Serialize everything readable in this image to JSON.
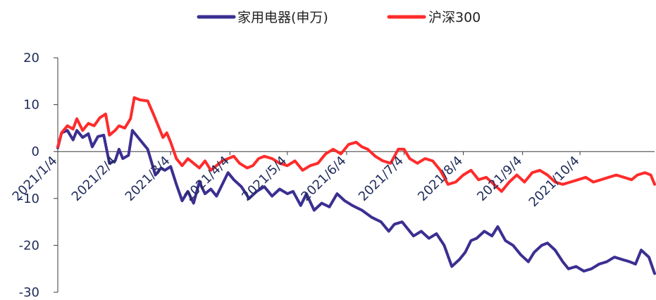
{
  "chart_data": {
    "type": "line",
    "title": "",
    "xlabel": "",
    "ylabel": "",
    "ylim": [
      -30,
      20
    ],
    "yticks": [
      -30,
      -20,
      -10,
      0,
      10,
      20
    ],
    "ytick_labels": [
      "-30",
      "-20",
      "-10",
      "0",
      "10",
      "20"
    ],
    "xticks": [
      "2021/1/4",
      "2021/2/4",
      "2021/3/4",
      "2021/4/4",
      "2021/5/4",
      "2021/6/4",
      "2021/7/4",
      "2021/8/4",
      "2021/9/4",
      "2021/10/4"
    ],
    "xlim": [
      "2021/1/4",
      "2021/11/12"
    ],
    "grid": false,
    "legend": "top-center",
    "series": [
      {
        "name": "家用电器(申万)",
        "color": "#3b2f91",
        "points": [
          [
            "2021/1/4",
            0.8
          ],
          [
            "2021/1/6",
            4.0
          ],
          [
            "2021/1/9",
            4.5
          ],
          [
            "2021/1/12",
            2.5
          ],
          [
            "2021/1/14",
            4.5
          ],
          [
            "2021/1/17",
            3.0
          ],
          [
            "2021/1/20",
            3.8
          ],
          [
            "2021/1/22",
            1.0
          ],
          [
            "2021/1/25",
            3.2
          ],
          [
            "2021/1/28",
            3.5
          ],
          [
            "2021/1/31",
            -2.5
          ],
          [
            "2021/2/3",
            -2.0
          ],
          [
            "2021/2/5",
            0.5
          ],
          [
            "2021/2/7",
            -1.5
          ],
          [
            "2021/2/10",
            -0.8
          ],
          [
            "2021/2/12",
            4.5
          ],
          [
            "2021/2/15",
            3.0
          ],
          [
            "2021/2/20",
            0.5
          ],
          [
            "2021/2/24",
            -5.0
          ],
          [
            "2021/2/27",
            -3.5
          ],
          [
            "2021/3/1",
            -4.0
          ],
          [
            "2021/3/4",
            -3.2
          ],
          [
            "2021/3/7",
            -7.0
          ],
          [
            "2021/3/10",
            -10.5
          ],
          [
            "2021/3/13",
            -8.5
          ],
          [
            "2021/3/16",
            -11.0
          ],
          [
            "2021/3/19",
            -6.5
          ],
          [
            "2021/3/22",
            -9.0
          ],
          [
            "2021/3/25",
            -8.0
          ],
          [
            "2021/3/28",
            -9.5
          ],
          [
            "2021/3/31",
            -7.0
          ],
          [
            "2021/4/3",
            -4.5
          ],
          [
            "2021/4/6",
            -6.0
          ],
          [
            "2021/4/10",
            -7.5
          ],
          [
            "2021/4/14",
            -10.0
          ],
          [
            "2021/4/18",
            -8.5
          ],
          [
            "2021/4/22",
            -7.5
          ],
          [
            "2021/4/26",
            -9.5
          ],
          [
            "2021/4/30",
            -8.0
          ],
          [
            "2021/5/4",
            -9.0
          ],
          [
            "2021/5/7",
            -8.5
          ],
          [
            "2021/5/11",
            -11.5
          ],
          [
            "2021/5/14",
            -9.0
          ],
          [
            "2021/5/18",
            -12.5
          ],
          [
            "2021/5/22",
            -11.0
          ],
          [
            "2021/5/26",
            -11.8
          ],
          [
            "2021/5/30",
            -9.0
          ],
          [
            "2021/6/3",
            -10.5
          ],
          [
            "2021/6/7",
            -11.5
          ],
          [
            "2021/6/12",
            -12.5
          ],
          [
            "2021/6/17",
            -14.0
          ],
          [
            "2021/6/22",
            -15.0
          ],
          [
            "2021/6/26",
            -17.0
          ],
          [
            "2021/6/29",
            -15.5
          ],
          [
            "2021/7/3",
            -15.0
          ],
          [
            "2021/7/6",
            -16.5
          ],
          [
            "2021/7/9",
            -18.0
          ],
          [
            "2021/7/13",
            -17.0
          ],
          [
            "2021/7/17",
            -18.5
          ],
          [
            "2021/7/21",
            -17.5
          ],
          [
            "2021/7/25",
            -20.0
          ],
          [
            "2021/7/29",
            -24.5
          ],
          [
            "2021/8/2",
            -23.0
          ],
          [
            "2021/8/5",
            -21.5
          ],
          [
            "2021/8/8",
            -19.0
          ],
          [
            "2021/8/11",
            -18.5
          ],
          [
            "2021/8/15",
            -17.0
          ],
          [
            "2021/8/19",
            -18.0
          ],
          [
            "2021/8/22",
            -16.0
          ],
          [
            "2021/8/26",
            -19.0
          ],
          [
            "2021/8/30",
            -20.0
          ],
          [
            "2021/9/3",
            -22.0
          ],
          [
            "2021/9/7",
            -23.5
          ],
          [
            "2021/9/10",
            -21.5
          ],
          [
            "2021/9/14",
            -20.0
          ],
          [
            "2021/9/17",
            -19.5
          ],
          [
            "2021/9/21",
            -21.0
          ],
          [
            "2021/9/25",
            -23.5
          ],
          [
            "2021/9/28",
            -25.0
          ],
          [
            "2021/10/2",
            -24.5
          ],
          [
            "2021/10/6",
            -25.5
          ],
          [
            "2021/10/10",
            -25.0
          ],
          [
            "2021/10/14",
            -24.0
          ],
          [
            "2021/10/18",
            -23.5
          ],
          [
            "2021/10/22",
            -22.5
          ],
          [
            "2021/10/26",
            -23.0
          ],
          [
            "2021/10/30",
            -23.5
          ],
          [
            "2021/11/2",
            -24.0
          ],
          [
            "2021/11/5",
            -21.0
          ],
          [
            "2021/11/9",
            -22.5
          ],
          [
            "2021/11/12",
            -26.0
          ]
        ]
      },
      {
        "name": "沪深300",
        "color": "#ff2b2b",
        "points": [
          [
            "2021/1/4",
            1.0
          ],
          [
            "2021/1/6",
            4.0
          ],
          [
            "2021/1/9",
            5.5
          ],
          [
            "2021/1/12",
            4.8
          ],
          [
            "2021/1/14",
            7.0
          ],
          [
            "2021/1/17",
            4.5
          ],
          [
            "2021/1/20",
            6.0
          ],
          [
            "2021/1/23",
            5.5
          ],
          [
            "2021/1/26",
            7.2
          ],
          [
            "2021/1/29",
            8.0
          ],
          [
            "2021/1/31",
            3.5
          ],
          [
            "2021/2/3",
            4.5
          ],
          [
            "2021/2/5",
            5.5
          ],
          [
            "2021/2/8",
            5.0
          ],
          [
            "2021/2/11",
            7.0
          ],
          [
            "2021/2/13",
            11.5
          ],
          [
            "2021/2/16",
            11.0
          ],
          [
            "2021/2/20",
            10.8
          ],
          [
            "2021/2/23",
            8.0
          ],
          [
            "2021/2/26",
            5.0
          ],
          [
            "2021/2/28",
            3.0
          ],
          [
            "2021/3/2",
            4.0
          ],
          [
            "2021/3/4",
            2.0
          ],
          [
            "2021/3/7",
            -1.5
          ],
          [
            "2021/3/10",
            -3.0
          ],
          [
            "2021/3/13",
            -1.5
          ],
          [
            "2021/3/16",
            -2.5
          ],
          [
            "2021/3/19",
            -3.5
          ],
          [
            "2021/3/22",
            -2.0
          ],
          [
            "2021/3/25",
            -4.0
          ],
          [
            "2021/3/28",
            -3.0
          ],
          [
            "2021/3/31",
            -2.0
          ],
          [
            "2021/4/3",
            -1.5
          ],
          [
            "2021/4/6",
            -1.0
          ],
          [
            "2021/4/9",
            -2.5
          ],
          [
            "2021/4/13",
            -3.5
          ],
          [
            "2021/4/16",
            -3.0
          ],
          [
            "2021/4/19",
            -1.5
          ],
          [
            "2021/4/22",
            -1.0
          ],
          [
            "2021/4/26",
            -1.5
          ],
          [
            "2021/4/30",
            -2.5
          ],
          [
            "2021/5/4",
            -3.0
          ],
          [
            "2021/5/8",
            -2.0
          ],
          [
            "2021/5/12",
            -4.0
          ],
          [
            "2021/5/16",
            -3.0
          ],
          [
            "2021/5/20",
            -2.5
          ],
          [
            "2021/5/24",
            -0.5
          ],
          [
            "2021/5/28",
            0.5
          ],
          [
            "2021/6/1",
            -0.5
          ],
          [
            "2021/6/5",
            1.5
          ],
          [
            "2021/6/9",
            2.0
          ],
          [
            "2021/6/12",
            1.0
          ],
          [
            "2021/6/15",
            0.5
          ],
          [
            "2021/6/19",
            -1.0
          ],
          [
            "2021/6/23",
            -2.0
          ],
          [
            "2021/6/27",
            -2.5
          ],
          [
            "2021/7/1",
            0.5
          ],
          [
            "2021/7/4",
            0.5
          ],
          [
            "2021/7/7",
            -1.5
          ],
          [
            "2021/7/11",
            -2.5
          ],
          [
            "2021/7/15",
            -1.5
          ],
          [
            "2021/7/19",
            -2.0
          ],
          [
            "2021/7/23",
            -4.0
          ],
          [
            "2021/7/27",
            -7.0
          ],
          [
            "2021/7/31",
            -6.5
          ],
          [
            "2021/8/4",
            -5.0
          ],
          [
            "2021/8/8",
            -4.0
          ],
          [
            "2021/8/12",
            -6.0
          ],
          [
            "2021/8/16",
            -5.5
          ],
          [
            "2021/8/20",
            -7.0
          ],
          [
            "2021/8/24",
            -8.5
          ],
          [
            "2021/8/28",
            -6.5
          ],
          [
            "2021/9/1",
            -5.0
          ],
          [
            "2021/9/5",
            -6.5
          ],
          [
            "2021/9/9",
            -4.5
          ],
          [
            "2021/9/13",
            -4.0
          ],
          [
            "2021/9/17",
            -5.0
          ],
          [
            "2021/9/21",
            -6.5
          ],
          [
            "2021/9/25",
            -7.0
          ],
          [
            "2021/9/29",
            -6.5
          ],
          [
            "2021/10/3",
            -6.0
          ],
          [
            "2021/10/7",
            -5.5
          ],
          [
            "2021/10/11",
            -6.5
          ],
          [
            "2021/10/15",
            -6.0
          ],
          [
            "2021/10/19",
            -5.5
          ],
          [
            "2021/10/23",
            -5.0
          ],
          [
            "2021/10/27",
            -5.5
          ],
          [
            "2021/10/31",
            -6.0
          ],
          [
            "2021/11/3",
            -5.0
          ],
          [
            "2021/11/7",
            -4.5
          ],
          [
            "2021/11/10",
            -5.0
          ],
          [
            "2021/11/12",
            -7.0
          ]
        ]
      }
    ]
  }
}
